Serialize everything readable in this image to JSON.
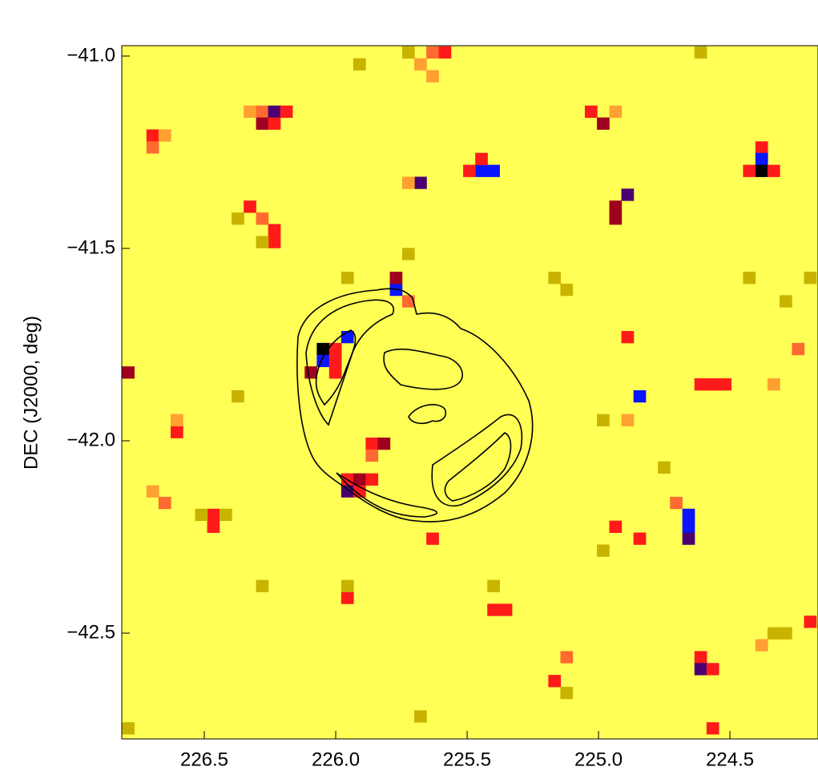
{
  "chart_data": {
    "type": "image",
    "ylabel": "DEC (J2000, deg)",
    "xlim": [
      226.814,
      224.165
    ],
    "ylim": [
      -42.775,
      -40.973
    ],
    "xticks": [
      226.5,
      {
        "value": 226,
        "label": "226.0"
      },
      225.5,
      {
        "value": 225,
        "label": "225.0"
      },
      224.5
    ],
    "yticks": [
      {
        "value": -41,
        "label": "−41.0"
      },
      {
        "value": -41.5,
        "label": "−41.5"
      },
      {
        "value": -42,
        "label": "−42.0"
      },
      {
        "value": -42.5,
        "label": "−42.5"
      }
    ],
    "background": "#ffff55",
    "pixels": [
      {
        "ra": 225.724,
        "dec": -40.99,
        "color": "#c8b400"
      },
      {
        "ra": 225.632,
        "dec": -40.99,
        "color": "#ff6a30"
      },
      {
        "ra": 225.585,
        "dec": -40.99,
        "color": "#ff1a1a"
      },
      {
        "ra": 225.678,
        "dec": -41.021,
        "color": "#ffa030"
      },
      {
        "ra": 225.632,
        "dec": -41.052,
        "color": "#ffa030"
      },
      {
        "ra": 225.91,
        "dec": -41.021,
        "color": "#c8b400"
      },
      {
        "ra": 224.612,
        "dec": -40.99,
        "color": "#c8b400"
      },
      {
        "ra": 226.327,
        "dec": -41.144,
        "color": "#ffa030"
      },
      {
        "ra": 226.28,
        "dec": -41.144,
        "color": "#ff6a30"
      },
      {
        "ra": 226.234,
        "dec": -41.144,
        "color": "#4a0070"
      },
      {
        "ra": 226.188,
        "dec": -41.144,
        "color": "#ff1a1a"
      },
      {
        "ra": 226.28,
        "dec": -41.175,
        "color": "#a00020"
      },
      {
        "ra": 226.234,
        "dec": -41.175,
        "color": "#ff1a1a"
      },
      {
        "ra": 226.697,
        "dec": -41.206,
        "color": "#ff1a1a"
      },
      {
        "ra": 226.651,
        "dec": -41.206,
        "color": "#ffa030"
      },
      {
        "ra": 226.697,
        "dec": -41.237,
        "color": "#ff6a30"
      },
      {
        "ra": 225.029,
        "dec": -41.144,
        "color": "#ff1a1a"
      },
      {
        "ra": 224.983,
        "dec": -41.175,
        "color": "#a00020"
      },
      {
        "ra": 224.936,
        "dec": -41.144,
        "color": "#ffa030"
      },
      {
        "ra": 225.446,
        "dec": -41.298,
        "color": "#0a14ff"
      },
      {
        "ra": 225.4,
        "dec": -41.298,
        "color": "#0a14ff"
      },
      {
        "ra": 225.492,
        "dec": -41.298,
        "color": "#ff1a1a"
      },
      {
        "ra": 225.446,
        "dec": -41.267,
        "color": "#ff1a1a"
      },
      {
        "ra": 224.38,
        "dec": -41.237,
        "color": "#ff1a1a"
      },
      {
        "ra": 224.38,
        "dec": -41.267,
        "color": "#0a14ff"
      },
      {
        "ra": 224.38,
        "dec": -41.298,
        "color": "#000000"
      },
      {
        "ra": 224.427,
        "dec": -41.298,
        "color": "#ff1a1a"
      },
      {
        "ra": 224.334,
        "dec": -41.298,
        "color": "#ff1a1a"
      },
      {
        "ra": 225.678,
        "dec": -41.329,
        "color": "#4a0070"
      },
      {
        "ra": 225.724,
        "dec": -41.329,
        "color": "#ffa030"
      },
      {
        "ra": 226.327,
        "dec": -41.391,
        "color": "#ff1a1a"
      },
      {
        "ra": 226.28,
        "dec": -41.422,
        "color": "#ff6a30"
      },
      {
        "ra": 226.234,
        "dec": -41.452,
        "color": "#ff1a1a"
      },
      {
        "ra": 226.234,
        "dec": -41.483,
        "color": "#ff1a1a"
      },
      {
        "ra": 224.89,
        "dec": -41.36,
        "color": "#4a0070"
      },
      {
        "ra": 224.936,
        "dec": -41.391,
        "color": "#a00020"
      },
      {
        "ra": 224.936,
        "dec": -41.422,
        "color": "#a00020"
      },
      {
        "ra": 225.771,
        "dec": -41.607,
        "color": "#0a14ff"
      },
      {
        "ra": 225.771,
        "dec": -41.576,
        "color": "#a00020"
      },
      {
        "ra": 225.724,
        "dec": -41.637,
        "color": "#ff6a30"
      },
      {
        "ra": 225.956,
        "dec": -41.73,
        "color": "#0a14ff"
      },
      {
        "ra": 226.049,
        "dec": -41.761,
        "color": "#000000"
      },
      {
        "ra": 226.002,
        "dec": -41.761,
        "color": "#ff1a1a"
      },
      {
        "ra": 226.049,
        "dec": -41.792,
        "color": "#0a14ff"
      },
      {
        "ra": 226.002,
        "dec": -41.792,
        "color": "#ff1a1a"
      },
      {
        "ra": 226.095,
        "dec": -41.822,
        "color": "#a00020"
      },
      {
        "ra": 226.002,
        "dec": -41.822,
        "color": "#ff1a1a"
      },
      {
        "ra": 226.79,
        "dec": -41.822,
        "color": "#a00020"
      },
      {
        "ra": 224.89,
        "dec": -41.73,
        "color": "#ff1a1a"
      },
      {
        "ra": 224.844,
        "dec": -41.884,
        "color": "#0a14ff"
      },
      {
        "ra": 224.612,
        "dec": -41.853,
        "color": "#ff1a1a"
      },
      {
        "ra": 224.566,
        "dec": -41.853,
        "color": "#ff1a1a"
      },
      {
        "ra": 224.519,
        "dec": -41.853,
        "color": "#ff1a1a"
      },
      {
        "ra": 224.658,
        "dec": -42.223,
        "color": "#0a14ff"
      },
      {
        "ra": 224.658,
        "dec": -42.192,
        "color": "#0a14ff"
      },
      {
        "ra": 224.658,
        "dec": -42.254,
        "color": "#4a0070"
      },
      {
        "ra": 224.705,
        "dec": -42.161,
        "color": "#ff6a30"
      },
      {
        "ra": 226.605,
        "dec": -41.977,
        "color": "#ff1a1a"
      },
      {
        "ra": 226.605,
        "dec": -41.946,
        "color": "#ffa030"
      },
      {
        "ra": 225.863,
        "dec": -42.007,
        "color": "#ff1a1a"
      },
      {
        "ra": 225.817,
        "dec": -42.007,
        "color": "#a00020"
      },
      {
        "ra": 225.863,
        "dec": -42.038,
        "color": "#ff6a30"
      },
      {
        "ra": 225.956,
        "dec": -42.1,
        "color": "#ff1a1a"
      },
      {
        "ra": 225.91,
        "dec": -42.1,
        "color": "#a00020"
      },
      {
        "ra": 225.863,
        "dec": -42.1,
        "color": "#ff1a1a"
      },
      {
        "ra": 225.956,
        "dec": -42.131,
        "color": "#4a0070"
      },
      {
        "ra": 225.91,
        "dec": -42.131,
        "color": "#ff1a1a"
      },
      {
        "ra": 226.466,
        "dec": -42.192,
        "color": "#ff1a1a"
      },
      {
        "ra": 226.466,
        "dec": -42.223,
        "color": "#ff1a1a"
      },
      {
        "ra": 225.632,
        "dec": -42.254,
        "color": "#ff1a1a"
      },
      {
        "ra": 225.956,
        "dec": -42.408,
        "color": "#ff1a1a"
      },
      {
        "ra": 225.4,
        "dec": -42.439,
        "color": "#ff1a1a"
      },
      {
        "ra": 225.353,
        "dec": -42.439,
        "color": "#ff1a1a"
      },
      {
        "ra": 224.612,
        "dec": -42.562,
        "color": "#ff1a1a"
      },
      {
        "ra": 224.612,
        "dec": -42.593,
        "color": "#4a0070"
      },
      {
        "ra": 224.566,
        "dec": -42.593,
        "color": "#ff1a1a"
      },
      {
        "ra": 224.195,
        "dec": -42.47,
        "color": "#ff1a1a"
      },
      {
        "ra": 224.566,
        "dec": -42.747,
        "color": "#ff1a1a"
      },
      {
        "ra": 225.168,
        "dec": -42.624,
        "color": "#ff1a1a"
      },
      {
        "ra": 225.122,
        "dec": -42.562,
        "color": "#ff6a30"
      },
      {
        "ra": 226.697,
        "dec": -42.131,
        "color": "#ffa030"
      },
      {
        "ra": 226.651,
        "dec": -42.161,
        "color": "#ff6a30"
      },
      {
        "ra": 224.241,
        "dec": -41.761,
        "color": "#ff6a30"
      },
      {
        "ra": 224.334,
        "dec": -41.853,
        "color": "#ffa030"
      },
      {
        "ra": 224.844,
        "dec": -42.254,
        "color": "#ff1a1a"
      },
      {
        "ra": 224.936,
        "dec": -42.223,
        "color": "#ff1a1a"
      },
      {
        "ra": 225.956,
        "dec": -41.576,
        "color": "#c8b400"
      },
      {
        "ra": 225.724,
        "dec": -41.514,
        "color": "#c8b400"
      },
      {
        "ra": 225.168,
        "dec": -41.576,
        "color": "#c8b400"
      },
      {
        "ra": 225.122,
        "dec": -41.607,
        "color": "#c8b400"
      },
      {
        "ra": 224.983,
        "dec": -41.946,
        "color": "#c8b400"
      },
      {
        "ra": 224.89,
        "dec": -41.946,
        "color": "#ffa030"
      },
      {
        "ra": 224.751,
        "dec": -42.069,
        "color": "#c8b400"
      },
      {
        "ra": 226.28,
        "dec": -42.377,
        "color": "#c8b400"
      },
      {
        "ra": 225.956,
        "dec": -42.377,
        "color": "#c8b400"
      },
      {
        "ra": 225.4,
        "dec": -42.377,
        "color": "#c8b400"
      },
      {
        "ra": 224.983,
        "dec": -42.285,
        "color": "#c8b400"
      },
      {
        "ra": 224.334,
        "dec": -42.5,
        "color": "#c8b400"
      },
      {
        "ra": 224.288,
        "dec": -42.5,
        "color": "#c8b400"
      },
      {
        "ra": 224.195,
        "dec": -41.576,
        "color": "#c8b400"
      },
      {
        "ra": 224.427,
        "dec": -41.576,
        "color": "#c8b400"
      },
      {
        "ra": 224.288,
        "dec": -41.637,
        "color": "#c8b400"
      },
      {
        "ra": 226.373,
        "dec": -41.884,
        "color": "#c8b400"
      },
      {
        "ra": 226.79,
        "dec": -42.747,
        "color": "#c8b400"
      },
      {
        "ra": 225.678,
        "dec": -42.716,
        "color": "#c8b400"
      },
      {
        "ra": 225.122,
        "dec": -42.655,
        "color": "#c8b400"
      },
      {
        "ra": 226.512,
        "dec": -42.192,
        "color": "#c8b400"
      },
      {
        "ra": 226.419,
        "dec": -42.192,
        "color": "#c8b400"
      },
      {
        "ra": 226.28,
        "dec": -41.483,
        "color": "#c8b400"
      },
      {
        "ra": 226.373,
        "dec": -41.422,
        "color": "#c8b400"
      },
      {
        "ra": 224.38,
        "dec": -42.531,
        "color": "#ffa030"
      }
    ]
  }
}
